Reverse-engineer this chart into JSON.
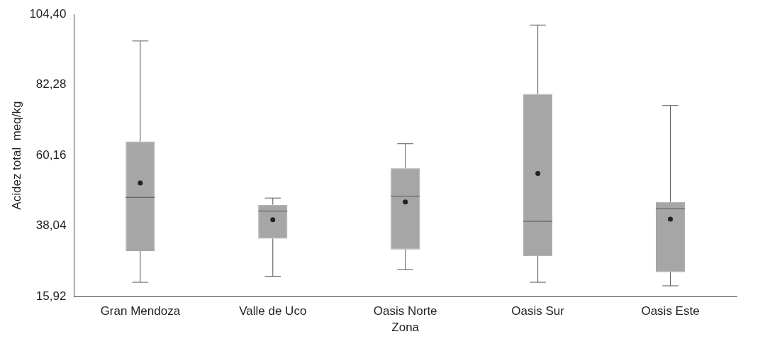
{
  "chart_data": {
    "type": "box",
    "xlabel": "Zona",
    "ylabel": "Acidez total  meq/kg",
    "categories": [
      "Gran Mendoza",
      "Valle de Uco",
      "Oasis Norte",
      "Oasis Sur",
      "Oasis Este"
    ],
    "color": "#a6a6a6",
    "boxes": [
      {
        "low": 20.4,
        "q1": 30.2,
        "median": 47.0,
        "q3": 64.5,
        "high": 96.0,
        "mean": 51.5
      },
      {
        "low": 22.3,
        "q1": 34.1,
        "median": 42.7,
        "q3": 44.7,
        "high": 46.8,
        "mean": 40.0
      },
      {
        "low": 24.3,
        "q1": 30.7,
        "median": 47.4,
        "q3": 56.1,
        "high": 63.8,
        "mean": 45.6
      },
      {
        "low": 20.4,
        "q1": 28.6,
        "median": 39.5,
        "q3": 79.4,
        "high": 101.0,
        "mean": 54.5
      },
      {
        "low": 19.3,
        "q1": 23.6,
        "median": 43.4,
        "q3": 45.6,
        "high": 75.8,
        "mean": 40.2
      }
    ],
    "ylim": [
      15.92,
      104.4
    ],
    "yticks": [
      {
        "value": 15.92,
        "label": "15,92"
      },
      {
        "value": 38.04,
        "label": "38,04"
      },
      {
        "value": 60.16,
        "label": "60,16"
      },
      {
        "value": 82.28,
        "label": "82,28"
      },
      {
        "value": 104.4,
        "label": "104,40"
      }
    ],
    "grid": false,
    "legend": false
  }
}
